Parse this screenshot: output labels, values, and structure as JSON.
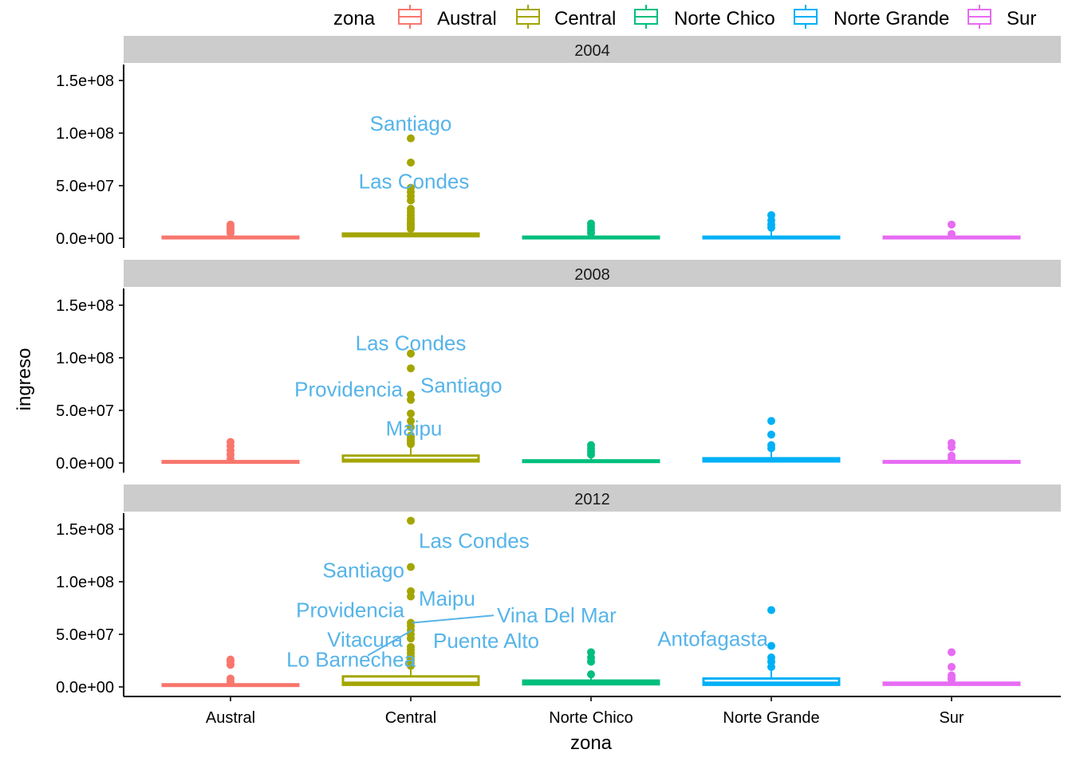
{
  "chart_data": {
    "type": "boxplot",
    "title": "",
    "xlabel": "zona",
    "ylabel": "ingreso",
    "categories": [
      "Austral",
      "Central",
      "Norte Chico",
      "Norte Grande",
      "Sur"
    ],
    "colors": {
      "Austral": "#F8766D",
      "Central": "#A3A500",
      "Norte Chico": "#00BF7D",
      "Norte Grande": "#00B0F6",
      "Sur": "#E76BF3"
    },
    "label_color": "#56B4E9",
    "strip_color": "#CCCCCC",
    "ylim": [
      -4000000,
      162000000
    ],
    "yticks": [
      0,
      50000000,
      100000000,
      150000000
    ],
    "ytick_labels": [
      "0.0e+00",
      "5.0e+07",
      "1.0e+08",
      "1.5e+08"
    ],
    "legend": {
      "title": "zona",
      "position": "top",
      "entries": [
        "Austral",
        "Central",
        "Norte Chico",
        "Norte Grande",
        "Sur"
      ]
    },
    "facets": [
      {
        "label": "2004",
        "boxes": [
          {
            "zona": "Austral",
            "q1": 500000,
            "median": 1000000,
            "q3": 1500000,
            "outliers": [
              5000000,
              7000000,
              9000000,
              11000000,
              13000000
            ]
          },
          {
            "zona": "Central",
            "q1": 2000000,
            "median": 3000000,
            "q3": 4500000,
            "outliers": [
              9000000,
              11000000,
              13000000,
              15000000,
              17000000,
              19000000,
              22000000,
              25000000,
              28000000,
              36000000,
              40000000,
              44000000,
              48000000,
              72000000,
              95000000
            ]
          },
          {
            "zona": "Norte Chico",
            "q1": 500000,
            "median": 1000000,
            "q3": 1500000,
            "outliers": [
              5000000,
              8000000,
              11000000,
              14000000
            ]
          },
          {
            "zona": "Norte Grande",
            "q1": 500000,
            "median": 1000000,
            "q3": 1500000,
            "outliers": [
              10000000,
              13000000,
              17000000,
              22000000
            ]
          },
          {
            "zona": "Sur",
            "q1": 500000,
            "median": 1000000,
            "q3": 1500000,
            "outliers": [
              4000000,
              13000000
            ]
          }
        ],
        "labels": [
          {
            "text": "Santiago",
            "zona": "Central",
            "value": 95000000,
            "anchor": "middle",
            "dx": 0,
            "dy_value": 14000000
          },
          {
            "text": "Las Condes",
            "zona": "Central",
            "value": 48000000,
            "anchor": "middle",
            "dx": 4,
            "dy_value": 6000000
          }
        ]
      },
      {
        "label": "2008",
        "boxes": [
          {
            "zona": "Austral",
            "q1": 500000,
            "median": 1000000,
            "q3": 1800000,
            "outliers": [
              4000000,
              8000000,
              12000000,
              16000000,
              20000000
            ]
          },
          {
            "zona": "Central",
            "q1": 1500000,
            "median": 3000000,
            "q3": 7000000,
            "outliers": [
              18000000,
              20000000,
              22000000,
              24000000,
              26000000,
              34000000,
              40000000,
              47000000,
              60000000,
              65000000,
              90000000,
              104000000
            ]
          },
          {
            "zona": "Norte Chico",
            "q1": 1000000,
            "median": 1500000,
            "q3": 2500000,
            "outliers": [
              8000000,
              11000000,
              14000000,
              17000000
            ]
          },
          {
            "zona": "Norte Grande",
            "q1": 1500000,
            "median": 2500000,
            "q3": 4500000,
            "outliers": [
              14000000,
              17000000,
              27000000,
              40000000
            ]
          },
          {
            "zona": "Sur",
            "q1": 500000,
            "median": 1000000,
            "q3": 1800000,
            "outliers": [
              4000000,
              7000000,
              15000000,
              19000000
            ]
          }
        ],
        "labels": [
          {
            "text": "Las Condes",
            "zona": "Central",
            "value": 104000000,
            "anchor": "middle",
            "dx": 0,
            "dy_value": 10000000
          },
          {
            "text": "Santiago",
            "zona": "Central",
            "value": 90000000,
            "anchor": "start",
            "dx": 12,
            "dy_value": -16000000
          },
          {
            "text": "Providencia",
            "zona": "Central",
            "value": 65000000,
            "anchor": "end",
            "dx": -10,
            "dy_value": 5000000
          },
          {
            "text": "Maipu",
            "zona": "Central",
            "value": 40000000,
            "anchor": "middle",
            "dx": 4,
            "dy_value": -7000000
          }
        ]
      },
      {
        "label": "2012",
        "boxes": [
          {
            "zona": "Austral",
            "q1": 1000000,
            "median": 1500000,
            "q3": 2500000,
            "outliers": [
              5000000,
              8000000,
              21000000,
              24000000,
              26000000
            ]
          },
          {
            "zona": "Central",
            "q1": 2000000,
            "median": 4000000,
            "q3": 10000000,
            "outliers": [
              20000000,
              23000000,
              26000000,
              29000000,
              32000000,
              35000000,
              38000000,
              46000000,
              50000000,
              54000000,
              58000000,
              61000000,
              86000000,
              91000000,
              114000000,
              158000000
            ]
          },
          {
            "zona": "Norte Chico",
            "q1": 2500000,
            "median": 4000000,
            "q3": 6000000,
            "outliers": [
              12000000,
              24000000,
              28000000,
              33000000
            ]
          },
          {
            "zona": "Norte Grande",
            "q1": 2000000,
            "median": 4000000,
            "q3": 8000000,
            "outliers": [
              19000000,
              24000000,
              28000000,
              39000000,
              73000000
            ]
          },
          {
            "zona": "Sur",
            "q1": 2000000,
            "median": 3000000,
            "q3": 4000000,
            "outliers": [
              7000000,
              9000000,
              11000000,
              19000000,
              33000000
            ]
          }
        ],
        "labels": [
          {
            "text": "Las Condes",
            "zona": "Central",
            "value": 158000000,
            "anchor": "start",
            "dx": 10,
            "dy_value": -19000000
          },
          {
            "text": "Santiago",
            "zona": "Central",
            "value": 114000000,
            "anchor": "end",
            "dx": -8,
            "dy_value": -3000000
          },
          {
            "text": "Maipu",
            "zona": "Central",
            "value": 91000000,
            "anchor": "start",
            "dx": 10,
            "dy_value": -7000000
          },
          {
            "text": "Providencia",
            "zona": "Central",
            "value": 86000000,
            "anchor": "end",
            "dx": -8,
            "dy_value": -13000000
          },
          {
            "text": "Vina Del Mar",
            "zona": "Central",
            "value": 61000000,
            "anchor": "start",
            "dx": 108,
            "dy_value": 7000000,
            "leader": true
          },
          {
            "text": "Vitacura",
            "zona": "Central",
            "value": 50000000,
            "anchor": "end",
            "dx": -10,
            "dy_value": -5000000
          },
          {
            "text": "Puente Alto",
            "zona": "Central",
            "value": 46000000,
            "anchor": "start",
            "dx": 28,
            "dy_value": -2000000
          },
          {
            "text": "Lo Barnechea",
            "zona": "Central",
            "value": 54000000,
            "anchor": "end",
            "dx": 6,
            "dy_value": -28000000,
            "leader": true
          },
          {
            "text": "Antofagasta",
            "zona": "Norte Grande",
            "value": 73000000,
            "anchor": "end",
            "dx": -4,
            "dy_value": -27000000
          }
        ]
      }
    ]
  }
}
